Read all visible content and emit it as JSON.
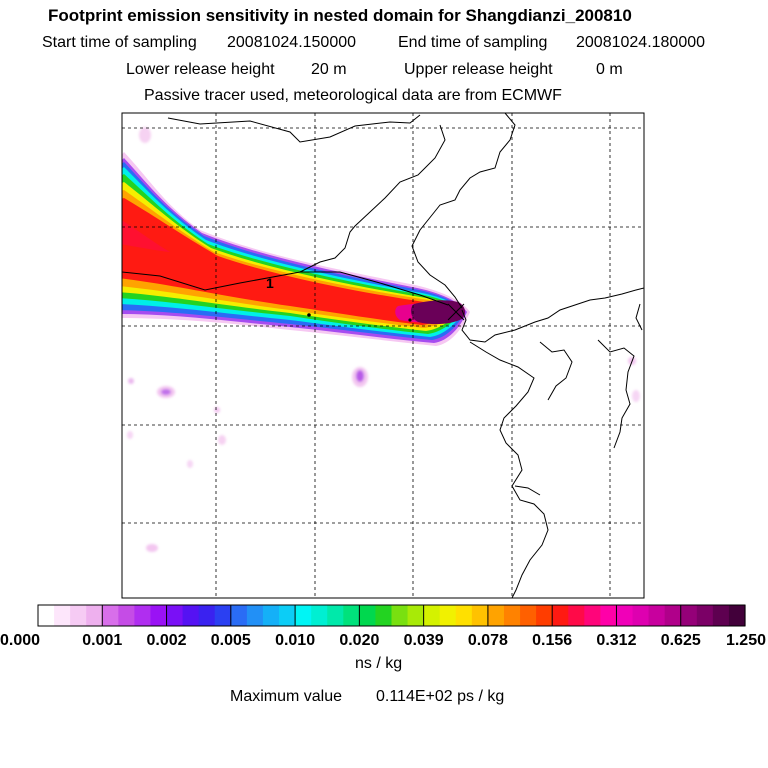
{
  "header": {
    "title": "Footprint emission sensitivity in nested domain for Shangdianzi_200810",
    "start_label": "Start time of sampling",
    "start_value": "20081024.150000",
    "end_label": "End time of sampling",
    "end_value": "20081024.180000",
    "lower_label": "Lower release height",
    "lower_value": "20 m",
    "upper_label": "Upper release height",
    "upper_value": "0 m",
    "note": "Passive tracer used, meteorological data are from ECMWF"
  },
  "chart_data": {
    "type": "heatmap",
    "title": "Footprint emission sensitivity in nested domain for Shangdianzi_200810",
    "colorbar": {
      "tick_labels": [
        "0.000",
        "0.001",
        "0.002",
        "0.005",
        "0.010",
        "0.020",
        "0.039",
        "0.078",
        "0.156",
        "0.312",
        "0.625",
        "1.250"
      ],
      "unit": "ns / kg",
      "colors": [
        "#ffffff",
        "#fde6fb",
        "#f6cbf4",
        "#eeb0ee",
        "#d86fea",
        "#c54ce6",
        "#b02ef0",
        "#9a12f5",
        "#7a10f6",
        "#5512f3",
        "#3a22f0",
        "#2b40f2",
        "#2a6cf5",
        "#2290f6",
        "#15b0f7",
        "#0ccdf6",
        "#00f5f5",
        "#00efd2",
        "#00e9aa",
        "#00e27c",
        "#00d84e",
        "#23d321",
        "#79e010",
        "#a8ea07",
        "#d4f200",
        "#f1f100",
        "#ffe000",
        "#ffc200",
        "#ffa300",
        "#ff8200",
        "#ff6000",
        "#ff3d00",
        "#ff1a12",
        "#ff0a48",
        "#ff057a",
        "#ff00a8",
        "#f000b8",
        "#de00b0",
        "#c8009e",
        "#b0008a",
        "#950078",
        "#7b0066",
        "#5e0050",
        "#42003a"
      ]
    },
    "max_value_label": "Maximum value",
    "max_value": "0.114E+02 ps / kg",
    "release_marker": "1"
  }
}
